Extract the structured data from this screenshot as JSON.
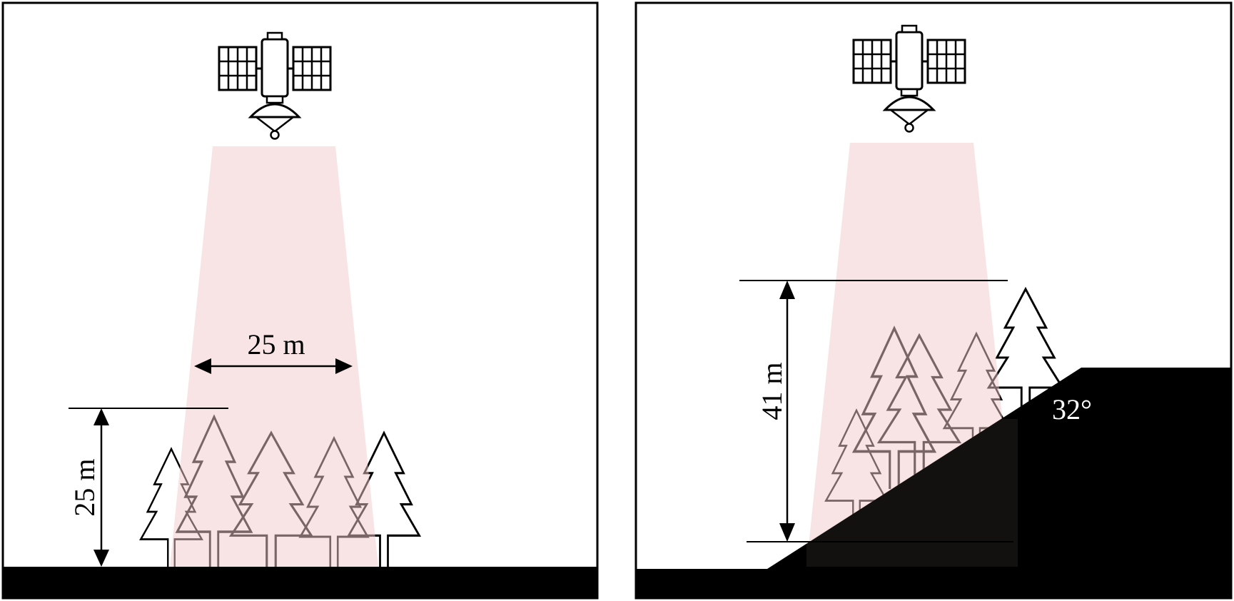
{
  "left_panel": {
    "footprint_width_label": "25 m",
    "canopy_height_label": "25 m"
  },
  "right_panel": {
    "canopy_height_label": "41 m",
    "slope_angle_label": "32°"
  },
  "colors": {
    "beam": "#f2c9c9",
    "ground": "#000000",
    "outline": "#000000"
  },
  "icons": [
    "satellite-icon",
    "tree-icon"
  ]
}
